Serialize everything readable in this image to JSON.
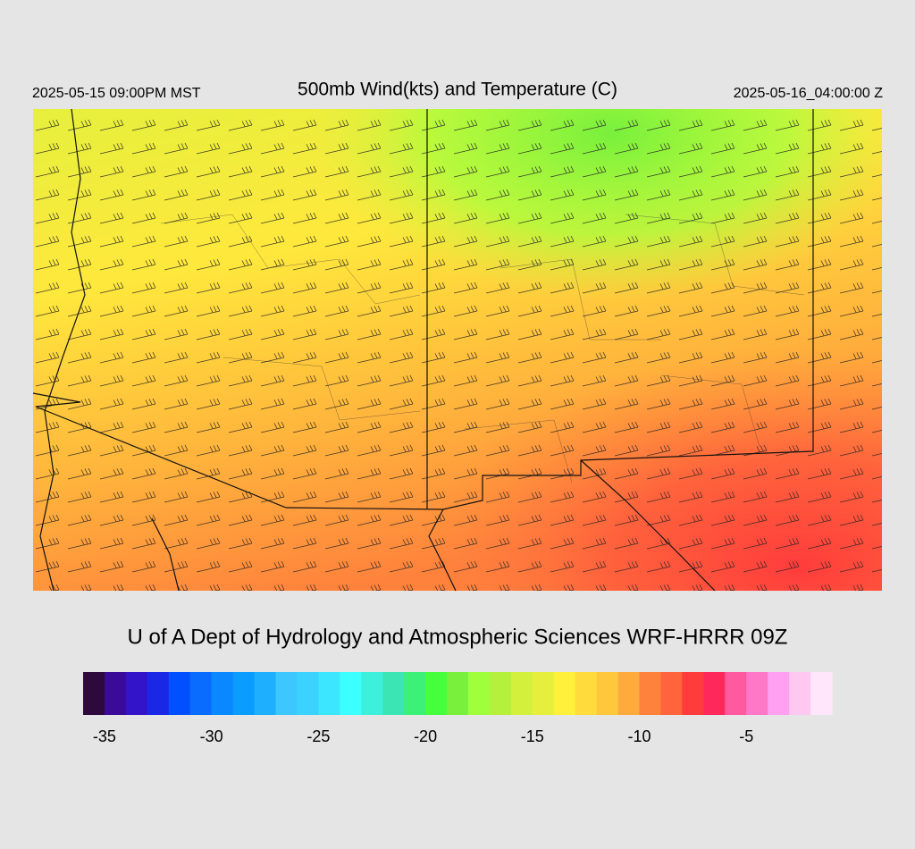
{
  "header": {
    "local_time": "2025-05-15 09:00PM MST",
    "title": "500mb Wind(kts) and Temperature (C)",
    "utc_time": "2025-05-16_04:00:00 Z"
  },
  "footer": {
    "credit": "U of A Dept of Hydrology and Atmospheric Sciences WRF-HRRR 09Z"
  },
  "colorbar": {
    "lim": [
      -36,
      -1
    ],
    "ticks": [
      -35,
      -30,
      -25,
      -20,
      -15,
      -10,
      -5
    ],
    "colors": [
      "#2e0a3c",
      "#3a0a99",
      "#3314c8",
      "#1a28e6",
      "#0050ff",
      "#0a6cff",
      "#0a88ff",
      "#0a9cff",
      "#1eb0ff",
      "#3cc8ff",
      "#3cd2ff",
      "#3ce6ff",
      "#3cffff",
      "#3cf0dc",
      "#3ce6b4",
      "#3cf078",
      "#46ff3c",
      "#78f03c",
      "#a0ff3c",
      "#b4f03c",
      "#d2f03c",
      "#e6f03c",
      "#fff03c",
      "#ffdc3c",
      "#ffc83c",
      "#ffaa3c",
      "#ff823c",
      "#ff643c",
      "#ff3c3c",
      "#ff285a",
      "#ff5aa0",
      "#ff78c8",
      "#ffa0f0",
      "#ffc8f0",
      "#ffe6fa"
    ]
  }
}
